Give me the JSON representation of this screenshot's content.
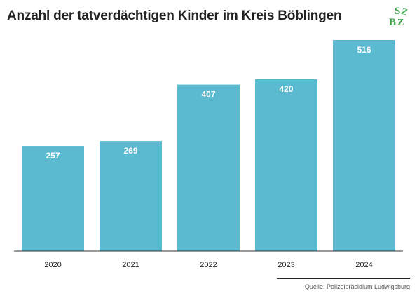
{
  "chart_data": {
    "type": "bar",
    "title": "Anzahl der tatverdächtigen Kinder im Kreis Böblingen",
    "categories": [
      "2020",
      "2021",
      "2022",
      "2023",
      "2024"
    ],
    "values": [
      257,
      269,
      407,
      420,
      516
    ],
    "xlabel": "",
    "ylabel": "",
    "ylim": [
      0,
      516
    ],
    "grid": false,
    "legend": "none",
    "bar_color": "#5bbacf",
    "data_label_color": "#ffffff",
    "source": "Quelle: Polizeipräsidium Ludwigsburg"
  },
  "logo": {
    "letters": [
      "S",
      "Z",
      "B",
      "Z"
    ],
    "color": "#3aa64a"
  }
}
